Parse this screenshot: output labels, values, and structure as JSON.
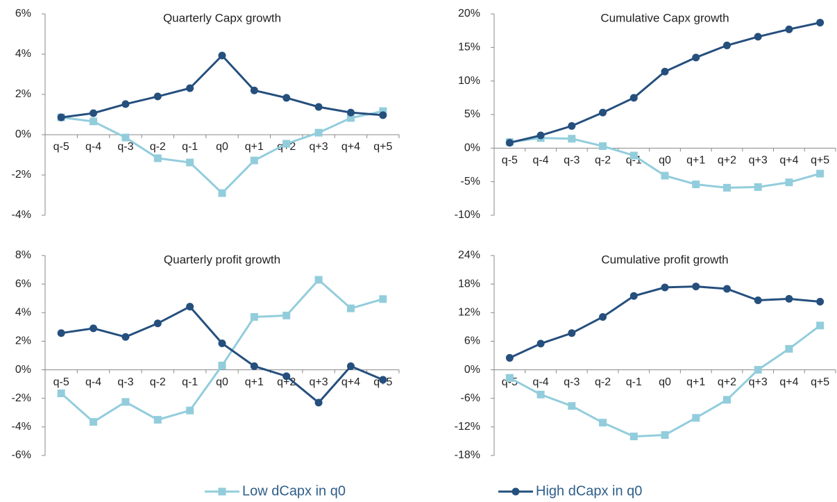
{
  "chart_data": [
    {
      "type": "line",
      "title": "Quarterly Capx growth",
      "categories": [
        "q-5",
        "q-4",
        "q-3",
        "q-2",
        "q-1",
        "q0",
        "q+1",
        "q+2",
        "q+3",
        "q+4",
        "q+5"
      ],
      "ylim": [
        -4,
        6
      ],
      "yticks": [
        {
          "value": -4,
          "label": "-4%"
        },
        {
          "value": -2,
          "label": "-2%"
        },
        {
          "value": 0,
          "label": "0%"
        },
        {
          "value": 2,
          "label": "2%"
        },
        {
          "value": 4,
          "label": "4%"
        },
        {
          "value": 6,
          "label": "6%"
        }
      ],
      "series": [
        {
          "color": "#92cddc",
          "marker": "square",
          "values": [
            0.86,
            0.66,
            -0.14,
            -1.17,
            -1.38,
            -2.9,
            -1.28,
            -0.45,
            0.1,
            0.83,
            1.17
          ]
        },
        {
          "color": "#254f7d",
          "marker": "circle",
          "values": [
            0.86,
            1.07,
            1.52,
            1.9,
            2.31,
            3.93,
            2.2,
            1.83,
            1.38,
            1.1,
            0.97
          ]
        }
      ]
    },
    {
      "type": "line",
      "title": "Cumulative Capx growth",
      "categories": [
        "q-5",
        "q-4",
        "q-3",
        "q-2",
        "q-1",
        "q0",
        "q+1",
        "q+2",
        "q+3",
        "q+4",
        "q+5"
      ],
      "ylim": [
        -10,
        20
      ],
      "yticks": [
        {
          "value": -10,
          "label": "-10%"
        },
        {
          "value": -5,
          "label": "-5%"
        },
        {
          "value": 0,
          "label": "0%"
        },
        {
          "value": 5,
          "label": "5%"
        },
        {
          "value": 10,
          "label": "10%"
        },
        {
          "value": 15,
          "label": "15%"
        },
        {
          "value": 20,
          "label": "20%"
        }
      ],
      "series": [
        {
          "color": "#92cddc",
          "marker": "square",
          "values": [
            0.9,
            1.5,
            1.4,
            0.3,
            -1.1,
            -4.1,
            -5.4,
            -5.9,
            -5.8,
            -5.1,
            -3.8
          ]
        },
        {
          "color": "#254f7d",
          "marker": "circle",
          "values": [
            0.8,
            1.9,
            3.3,
            5.3,
            7.5,
            11.4,
            13.5,
            15.3,
            16.6,
            17.7,
            18.7
          ]
        }
      ]
    },
    {
      "type": "line",
      "title": "Quarterly profit growth",
      "categories": [
        "q-5",
        "q-4",
        "q-3",
        "q-2",
        "q-1",
        "q0",
        "q+1",
        "q+2",
        "q+3",
        "q+4",
        "q+5"
      ],
      "ylim": [
        -6,
        8
      ],
      "yticks": [
        {
          "value": -6,
          "label": "-6%"
        },
        {
          "value": -4,
          "label": "-4%"
        },
        {
          "value": -2,
          "label": "-2%"
        },
        {
          "value": 0,
          "label": "0%"
        },
        {
          "value": 2,
          "label": "2%"
        },
        {
          "value": 4,
          "label": "4%"
        },
        {
          "value": 6,
          "label": "6%"
        },
        {
          "value": 8,
          "label": "8%"
        }
      ],
      "series": [
        {
          "color": "#92cddc",
          "marker": "square",
          "values": [
            -1.65,
            -3.65,
            -2.25,
            -3.5,
            -2.85,
            0.3,
            3.7,
            3.8,
            6.3,
            4.3,
            4.95
          ]
        },
        {
          "color": "#254f7d",
          "marker": "circle",
          "values": [
            2.57,
            2.9,
            2.3,
            3.25,
            4.42,
            1.85,
            0.25,
            -0.45,
            -2.3,
            0.25,
            -0.7
          ]
        }
      ]
    },
    {
      "type": "line",
      "title": "Cumulative profit growth",
      "categories": [
        "q-5",
        "q-4",
        "q-3",
        "q-2",
        "q-1",
        "q0",
        "q+1",
        "q+2",
        "q+3",
        "q+4",
        "q+5"
      ],
      "ylim": [
        -18,
        24
      ],
      "yticks": [
        {
          "value": -18,
          "label": "-18%"
        },
        {
          "value": -12,
          "label": "-12%"
        },
        {
          "value": -6,
          "label": "-6%"
        },
        {
          "value": 0,
          "label": "0%"
        },
        {
          "value": 6,
          "label": "6%"
        },
        {
          "value": 12,
          "label": "12%"
        },
        {
          "value": 18,
          "label": "18%"
        },
        {
          "value": 24,
          "label": "24%"
        }
      ],
      "series": [
        {
          "color": "#92cddc",
          "marker": "square",
          "values": [
            -1.7,
            -5.2,
            -7.6,
            -11.1,
            -14,
            -13.7,
            -10.1,
            -6.3,
            0,
            4.4,
            9.3
          ]
        },
        {
          "color": "#254f7d",
          "marker": "circle",
          "values": [
            2.5,
            5.5,
            7.7,
            11.1,
            15.5,
            17.3,
            17.5,
            17,
            14.6,
            14.9,
            14.3
          ]
        }
      ]
    }
  ],
  "legend": [
    {
      "name": "Low dCapx in q0",
      "color": "#92cddc",
      "marker": "square"
    },
    {
      "name": "High dCapx in q0",
      "color": "#254f7d",
      "marker": "circle"
    }
  ]
}
